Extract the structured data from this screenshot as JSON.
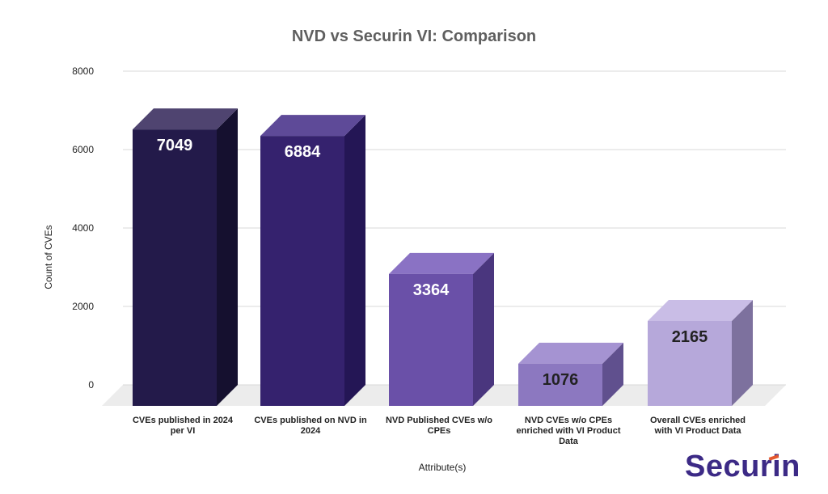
{
  "chart_data": {
    "type": "bar",
    "title": "NVD vs Securin VI: Comparison",
    "xlabel": "Attribute(s)",
    "ylabel": "Count of CVEs",
    "ylim": [
      0,
      8000
    ],
    "yticks": [
      "0",
      "2000",
      "4000",
      "6000",
      "8000"
    ],
    "grid": true,
    "style": "3d",
    "categories": [
      "CVEs published in 2024 per VI",
      "CVEs published on NVD in 2024",
      "NVD Published CVEs w/o CPEs",
      "NVD CVEs w/o CPEs enriched with VI Product Data",
      "Overall CVEs enriched with VI Product Data"
    ],
    "category_lines": [
      [
        "CVEs published in 2024",
        "per VI"
      ],
      [
        "CVEs published on NVD in",
        "2024"
      ],
      [
        "NVD Published CVEs w/o",
        "CPEs"
      ],
      [
        "NVD CVEs w/o CPEs",
        "enriched with VI Product",
        "Data"
      ],
      [
        "Overall CVEs enriched",
        "with VI Product Data"
      ]
    ],
    "values": [
      7049,
      6884,
      3364,
      1076,
      2165
    ],
    "value_labels": [
      "7049",
      "6884",
      "3364",
      "1076",
      "2165"
    ],
    "colors": {
      "front": [
        "#231a4a",
        "#35226e",
        "#6a50a8",
        "#8c78c0",
        "#b6a8da"
      ],
      "side": [
        "#15102f",
        "#241655",
        "#4a367e",
        "#60508e",
        "#7d719e"
      ],
      "top": [
        "#4f4470",
        "#5e4a98",
        "#8a72c4",
        "#a593d2",
        "#c9bde6"
      ],
      "value_label_dark": "#222222",
      "value_label_light": "#ffffff",
      "grid": "#d9d9d9",
      "floor": "#ececec"
    }
  },
  "brand": {
    "logo_text": "Securin"
  }
}
